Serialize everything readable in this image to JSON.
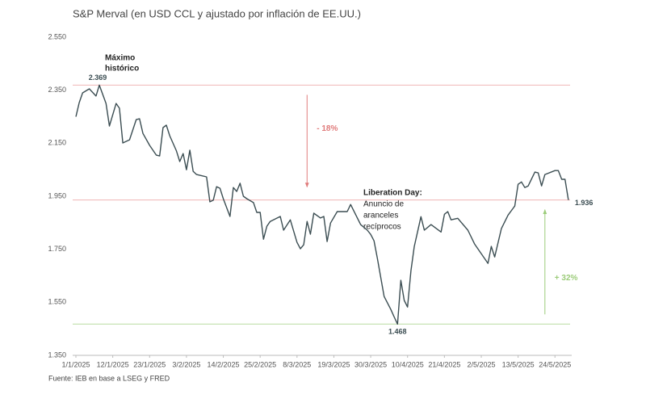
{
  "chart_data": {
    "type": "line",
    "title": "S&P Merval (en USD CCL y ajustado por inflación de EE.UU.)",
    "source": "Fuente: IEB en base a LSEG y FRED",
    "color": "#3b4d52",
    "xlim": [
      "1/1/2025",
      "29/5/2025"
    ],
    "xticks": [
      "1/1/2025",
      "12/1/2025",
      "23/1/2025",
      "3/2/2025",
      "14/2/2025",
      "25/2/2025",
      "8/3/2025",
      "19/3/2025",
      "30/3/2025",
      "10/4/2025",
      "21/4/2025",
      "2/5/2025",
      "13/5/2025",
      "24/5/2025"
    ],
    "ylim": [
      1350,
      2550
    ],
    "yticks": [
      {
        "value": 1350,
        "label": "1.350"
      },
      {
        "value": 1550,
        "label": "1.550"
      },
      {
        "value": 1750,
        "label": "1.750"
      },
      {
        "value": 1950,
        "label": "1.950"
      },
      {
        "value": 2150,
        "label": "2.150"
      },
      {
        "value": 2350,
        "label": "2.350"
      },
      {
        "value": 2550,
        "label": "2.550"
      }
    ],
    "grid": false,
    "x": [
      "1/1/2025",
      "2/1/2025",
      "3/1/2025",
      "5/1/2025",
      "7/1/2025",
      "8/1/2025",
      "10/1/2025",
      "11/1/2025",
      "13/1/2025",
      "14/1/2025",
      "15/1/2025",
      "17/1/2025",
      "19/1/2025",
      "20/1/2025",
      "21/1/2025",
      "23/1/2025",
      "25/1/2025",
      "26/1/2025",
      "27/1/2025",
      "28/1/2025",
      "29/1/2025",
      "31/1/2025",
      "1/2/2025",
      "2/2/2025",
      "3/2/2025",
      "4/2/2025",
      "5/2/2025",
      "6/2/2025",
      "9/2/2025",
      "10/2/2025",
      "11/2/2025",
      "12/2/2025",
      "13/2/2025",
      "14/2/2025",
      "16/2/2025",
      "17/2/2025",
      "18/2/2025",
      "19/2/2025",
      "20/2/2025",
      "21/2/2025",
      "23/2/2025",
      "24/2/2025",
      "25/2/2025",
      "26/2/2025",
      "27/2/2025",
      "28/2/2025",
      "3/3/2025",
      "4/3/2025",
      "6/3/2025",
      "8/3/2025",
      "9/3/2025",
      "10/3/2025",
      "11/3/2025",
      "12/3/2025",
      "13/3/2025",
      "15/3/2025",
      "16/3/2025",
      "17/3/2025",
      "18/3/2025",
      "20/3/2025",
      "23/3/2025",
      "24/3/2025",
      "27/3/2025",
      "29/3/2025",
      "30/3/2025",
      "31/3/2025",
      "1/4/2025",
      "3/4/2025",
      "5/4/2025",
      "6/4/2025",
      "7/4/2025",
      "8/4/2025",
      "9/4/2025",
      "10/4/2025",
      "11/4/2025",
      "12/4/2025",
      "14/4/2025",
      "15/4/2025",
      "17/4/2025",
      "20/4/2025",
      "21/4/2025",
      "22/4/2025",
      "23/4/2025",
      "25/4/2025",
      "28/4/2025",
      "30/4/2025",
      "4/5/2025",
      "5/5/2025",
      "6/5/2025",
      "8/5/2025",
      "10/5/2025",
      "12/5/2025",
      "13/5/2025",
      "14/5/2025",
      "15/5/2025",
      "16/5/2025",
      "18/5/2025",
      "19/5/2025",
      "20/5/2025",
      "21/5/2025",
      "24/5/2025",
      "25/5/2025",
      "26/5/2025",
      "27/5/2025",
      "28/5/2025"
    ],
    "values": [
      2250,
      2303,
      2340,
      2355,
      2328,
      2369,
      2300,
      2215,
      2300,
      2282,
      2151,
      2163,
      2239,
      2242,
      2187,
      2142,
      2105,
      2102,
      2209,
      2218,
      2178,
      2121,
      2081,
      2111,
      2050,
      2124,
      2044,
      2032,
      2023,
      1929,
      1935,
      1986,
      1980,
      1941,
      1874,
      1983,
      1968,
      1999,
      1950,
      1941,
      1926,
      1889,
      1889,
      1788,
      1837,
      1855,
      1874,
      1822,
      1861,
      1776,
      1752,
      1767,
      1855,
      1807,
      1886,
      1868,
      1874,
      1779,
      1849,
      1892,
      1892,
      1919,
      1843,
      1822,
      1806,
      1782,
      1715,
      1572,
      1523,
      1495,
      1468,
      1633,
      1557,
      1532,
      1669,
      1760,
      1873,
      1822,
      1843,
      1815,
      1882,
      1892,
      1861,
      1867,
      1822,
      1770,
      1697,
      1761,
      1721,
      1828,
      1879,
      1913,
      1995,
      2004,
      1983,
      1989,
      2041,
      2038,
      1989,
      2032,
      2047,
      2047,
      2014,
      2014,
      1936
    ],
    "reference_lines": [
      {
        "value": 2369,
        "color": "#f0b4b4"
      },
      {
        "value": 1936,
        "color": "#f0b4b4"
      },
      {
        "value": 1468,
        "color": "#b9dca0"
      }
    ],
    "arrows": [
      {
        "label": "- 18%",
        "x": "11/3/2025",
        "from": 2369,
        "to": 1936,
        "color": "#e07b7b"
      },
      {
        "label": "+ 32%",
        "x": "21/5/2025",
        "from": 1468,
        "to": 1936,
        "color": "#9ccc7a"
      }
    ],
    "point_labels": [
      {
        "x": "8/1/2025",
        "value": 2369,
        "label": "2.369"
      },
      {
        "x": "7/4/2025",
        "value": 1468,
        "label": "1.468"
      },
      {
        "x": "28/5/2025",
        "value": 1936,
        "label": "1.936"
      }
    ],
    "annotations": [
      {
        "title": "Máximo",
        "lines": [
          "histórico"
        ]
      },
      {
        "title": "Liberation Day:",
        "lines": [
          "Anuncio de",
          "aranceles",
          "recíprocos"
        ]
      }
    ]
  }
}
